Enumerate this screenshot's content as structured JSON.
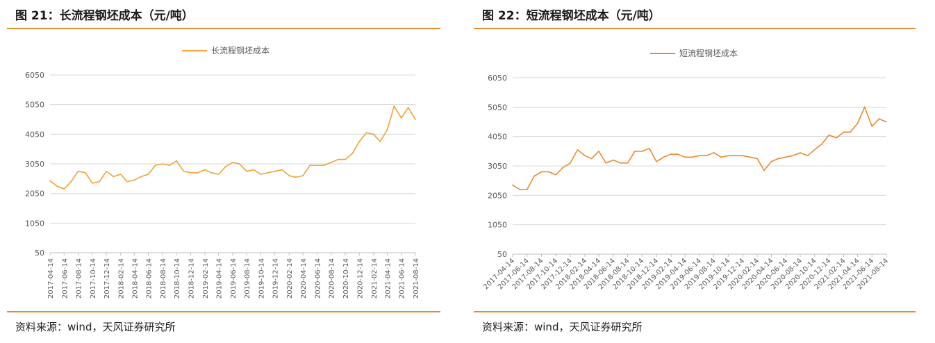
{
  "charts": [
    {
      "figure_title": "图 21：长流程钢坯成本（元/吨）",
      "source": "资料来源：wind，天风证券研究所",
      "color": "#f0a330",
      "chart_data": {
        "type": "line",
        "title": "",
        "xlabel": "",
        "ylabel": "",
        "legend": "top-center",
        "grid": true,
        "ylim": [
          50,
          6050
        ],
        "yticks": [
          "6050",
          "5050",
          "4050",
          "3050",
          "2050",
          "1050",
          "50"
        ],
        "xticks": [
          "2017-04-14",
          "2017-06-14",
          "2017-08-14",
          "2017-10-14",
          "2017-12-14",
          "2018-02-14",
          "2018-04-14",
          "2018-06-14",
          "2018-08-14",
          "2018-10-14",
          "2018-12-14",
          "2019-02-14",
          "2019-04-14",
          "2019-06-14",
          "2019-08-14",
          "2019-10-14",
          "2019-12-14",
          "2020-02-14",
          "2020-04-14",
          "2020-06-14",
          "2020-08-14",
          "2020-10-14",
          "2020-12-14",
          "2021-02-14",
          "2021-04-14",
          "2021-06-14",
          "2021-08-14"
        ],
        "series": [
          {
            "name": "长流程钢坯成本",
            "x": [
              "2017-04-14",
              "2017-05-14",
              "2017-06-14",
              "2017-07-14",
              "2017-08-14",
              "2017-09-14",
              "2017-10-14",
              "2017-11-14",
              "2017-12-14",
              "2018-01-14",
              "2018-02-14",
              "2018-03-14",
              "2018-04-14",
              "2018-05-14",
              "2018-06-14",
              "2018-07-14",
              "2018-08-14",
              "2018-09-14",
              "2018-10-14",
              "2018-11-14",
              "2018-12-14",
              "2019-01-14",
              "2019-02-14",
              "2019-03-14",
              "2019-04-14",
              "2019-05-14",
              "2019-06-14",
              "2019-07-14",
              "2019-08-14",
              "2019-09-14",
              "2019-10-14",
              "2019-11-14",
              "2019-12-14",
              "2020-01-14",
              "2020-02-14",
              "2020-03-14",
              "2020-04-14",
              "2020-05-14",
              "2020-06-14",
              "2020-07-14",
              "2020-08-14",
              "2020-09-14",
              "2020-10-14",
              "2020-11-14",
              "2020-12-14",
              "2021-01-14",
              "2021-02-14",
              "2021-03-14",
              "2021-04-14",
              "2021-05-14",
              "2021-06-14",
              "2021-07-14",
              "2021-08-14"
            ],
            "values": [
              2480,
              2300,
              2200,
              2450,
              2800,
              2750,
              2400,
              2450,
              2800,
              2620,
              2700,
              2450,
              2500,
              2620,
              2700,
              3000,
              3050,
              3000,
              3150,
              2800,
              2750,
              2750,
              2850,
              2750,
              2700,
              2950,
              3100,
              3050,
              2800,
              2850,
              2700,
              2750,
              2800,
              2850,
              2650,
              2600,
              2650,
              3000,
              3000,
              3000,
              3100,
              3200,
              3200,
              3400,
              3800,
              4100,
              4050,
              3800,
              4200,
              5000,
              4600,
              4950,
              4550
            ]
          }
        ]
      }
    },
    {
      "figure_title": "图 22：短流程钢坯成本（元/吨）",
      "source": "资料来源：wind，天风证券研究所",
      "color": "#e98a2c",
      "chart_data": {
        "type": "line",
        "title": "",
        "xlabel": "",
        "ylabel": "",
        "legend": "top-center",
        "grid": true,
        "ylim": [
          50,
          6050
        ],
        "yticks": [
          "6050",
          "5050",
          "4050",
          "3050",
          "2050",
          "1050",
          "50"
        ],
        "xticks": [
          "2017-04-14",
          "2017-06-14",
          "2017-08-14",
          "2017-10-14",
          "2017-12-14",
          "2018-02-14",
          "2018-04-14",
          "2018-06-14",
          "2018-08-14",
          "2018-10-14",
          "2018-12-14",
          "2019-02-14",
          "2019-04-14",
          "2019-06-14",
          "2019-08-14",
          "2019-10-14",
          "2019-12-14",
          "2020-02-14",
          "2020-04-14",
          "2020-06-14",
          "2020-08-14",
          "2020-10-14",
          "2020-12-14",
          "2021-02-14",
          "2021-04-14",
          "2021-06-14",
          "2021-08-14"
        ],
        "series": [
          {
            "name": "短流程钢坯成本",
            "x": [
              "2017-04-14",
              "2017-05-14",
              "2017-06-14",
              "2017-07-14",
              "2017-08-14",
              "2017-09-14",
              "2017-10-14",
              "2017-11-14",
              "2017-12-14",
              "2018-01-14",
              "2018-02-14",
              "2018-03-14",
              "2018-04-14",
              "2018-05-14",
              "2018-06-14",
              "2018-07-14",
              "2018-08-14",
              "2018-09-14",
              "2018-10-14",
              "2018-11-14",
              "2018-12-14",
              "2019-01-14",
              "2019-02-14",
              "2019-03-14",
              "2019-04-14",
              "2019-05-14",
              "2019-06-14",
              "2019-07-14",
              "2019-08-14",
              "2019-09-14",
              "2019-10-14",
              "2019-11-14",
              "2019-12-14",
              "2020-01-14",
              "2020-02-14",
              "2020-03-14",
              "2020-04-14",
              "2020-05-14",
              "2020-06-14",
              "2020-07-14",
              "2020-08-14",
              "2020-09-14",
              "2020-10-14",
              "2020-11-14",
              "2020-12-14",
              "2021-01-14",
              "2021-02-14",
              "2021-03-14",
              "2021-04-14",
              "2021-05-14",
              "2021-06-14",
              "2021-07-14",
              "2021-08-14"
            ],
            "values": [
              2400,
              2250,
              2250,
              2700,
              2850,
              2850,
              2750,
              3000,
              3150,
              3600,
              3400,
              3300,
              3550,
              3150,
              3250,
              3150,
              3150,
              3550,
              3550,
              3650,
              3200,
              3350,
              3450,
              3450,
              3350,
              3350,
              3400,
              3400,
              3500,
              3350,
              3400,
              3400,
              3400,
              3350,
              3300,
              2900,
              3200,
              3300,
              3350,
              3400,
              3500,
              3400,
              3600,
              3800,
              4100,
              4000,
              4200,
              4200,
              4500,
              5050,
              4400,
              4650,
              4550
            ]
          }
        ]
      }
    }
  ]
}
